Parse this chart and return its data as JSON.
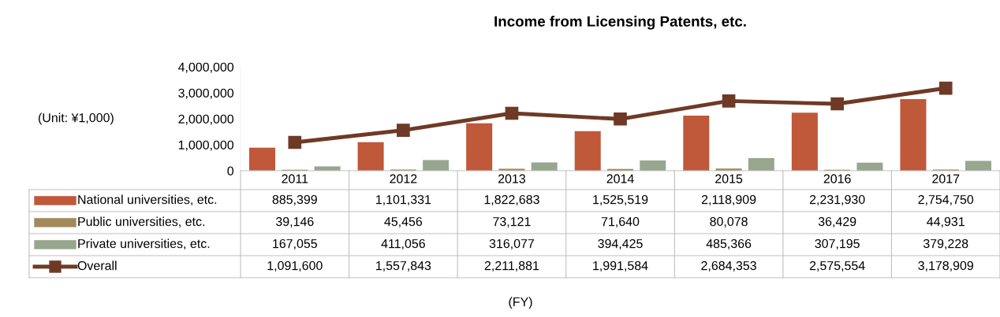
{
  "chart_data": {
    "type": "bar",
    "title": "Income from Licensing Patents, etc.",
    "annotations": [
      "(Unit: ¥1,000)",
      "(FY)"
    ],
    "categories": [
      "2011",
      "2012",
      "2013",
      "2014",
      "2015",
      "2016",
      "2017"
    ],
    "ylim": [
      0,
      4000000
    ],
    "yticks": [
      {
        "value": 0,
        "label": "0"
      },
      {
        "value": 1000000,
        "label": "1,000,000"
      },
      {
        "value": 2000000,
        "label": "2,000,000"
      },
      {
        "value": 3000000,
        "label": "3,000,000"
      },
      {
        "value": 4000000,
        "label": "4,000,000"
      }
    ],
    "grid": false,
    "legend": "bottom",
    "series": [
      {
        "name": "National universities, etc.",
        "color": "#c0583a",
        "values": [
          885399,
          1101331,
          1822683,
          1525519,
          2118909,
          2231930,
          2754750
        ],
        "value_labels": [
          "885,399",
          "1,101,331",
          "1,822,683",
          "1,525,519",
          "2,118,909",
          "2,231,930",
          "2,754,750"
        ]
      },
      {
        "name": "Public universities, etc.",
        "color": "#a08a5c",
        "values": [
          39146,
          45456,
          73121,
          71640,
          80078,
          36429,
          44931
        ],
        "value_labels": [
          "39,146",
          "45,456",
          "73,121",
          "71,640",
          "80,078",
          "36,429",
          "44,931"
        ]
      },
      {
        "name": "Private universities, etc.",
        "color": "#98a68f",
        "values": [
          167055,
          411056,
          316077,
          394425,
          485366,
          307195,
          379228
        ],
        "value_labels": [
          "167,055",
          "411,056",
          "316,077",
          "394,425",
          "485,366",
          "307,195",
          "379,228"
        ]
      },
      {
        "name": "Overall",
        "type": "line",
        "color": "#6e3a26",
        "marker": "square",
        "values": [
          1091600,
          1557843,
          2211881,
          1991584,
          2684353,
          2575554,
          3178909
        ],
        "value_labels": [
          "1,091,600",
          "1,557,843",
          "2,211,881",
          "1,991,584",
          "2,684,353",
          "2,575,554",
          "3,178,909"
        ]
      }
    ]
  }
}
